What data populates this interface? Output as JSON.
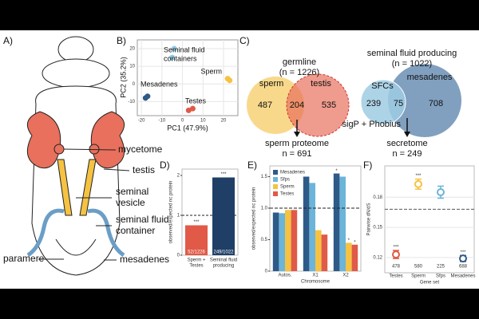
{
  "panel_a": {
    "label": "A)",
    "annotations": [
      "mycetome",
      "testis",
      "seminal",
      "vesicle",
      "seminal fluid",
      "container",
      "paramere",
      "mesadenes"
    ]
  },
  "panel_b": {
    "label": "B)",
    "type": "scatter",
    "xlabel": "PC1 (47.9%)",
    "ylabel": "PC2 (35.2%)",
    "xlim": [
      -22,
      27
    ],
    "ylim": [
      -18,
      25
    ],
    "xticks": [
      -20,
      -10,
      0,
      10,
      20
    ],
    "yticks": [
      -10,
      0,
      10,
      20
    ],
    "grid": true,
    "groups": [
      {
        "name": [
          "Seminal fluid",
          "containers"
        ],
        "color": "#8ecae6",
        "x": [
          -5,
          -4
        ],
        "y": [
          15,
          20
        ]
      },
      {
        "name": [
          "Sperm"
        ],
        "color": "#f5c242",
        "x": [
          23,
          22
        ],
        "y": [
          2,
          3
        ]
      },
      {
        "name": [
          "Mesadenes"
        ],
        "color": "#2e5a87",
        "x": [
          -18,
          -17
        ],
        "y": [
          -8,
          -7
        ]
      },
      {
        "name": [
          "Testes"
        ],
        "color": "#e05a47",
        "x": [
          3,
          5
        ],
        "y": [
          -15,
          -14
        ]
      }
    ]
  },
  "panel_c": {
    "label": "C)",
    "left": {
      "title": "germline",
      "n": "(n = 1226)",
      "set_a": "sperm",
      "set_b": "testis",
      "only_a": 487,
      "both": 204,
      "only_b": 535,
      "result": "sperm proteome",
      "result_n": "n = 691"
    },
    "right": {
      "title": "seminal fluid producing",
      "n": "(n = 1022)",
      "set_a": "SFCs",
      "set_b": "mesadenes",
      "only_a": 239,
      "both": 75,
      "only_b": 708,
      "filter": "sigP + Phobius",
      "result": "secretome",
      "result_n": "n = 249"
    }
  },
  "panel_d": {
    "label": "D)",
    "type": "bar",
    "ylabel": "observed/expected nc protein",
    "categories": [
      [
        "Sperm +",
        "Testes"
      ],
      [
        "Seminal fluid",
        "producing"
      ]
    ],
    "values": [
      0.75,
      1.95
    ],
    "colors": [
      "#e05a47",
      "#1f3f66"
    ],
    "counts": [
      "52/1226",
      "249/1022"
    ],
    "stars": [
      "***",
      "***"
    ],
    "ylim": [
      0,
      2.1
    ],
    "yticks": [
      0,
      1,
      2
    ],
    "reference_line": 1
  },
  "panel_e": {
    "label": "E)",
    "type": "bar",
    "xlabel": "Chromosome",
    "ylabel": "observed/expected nc protein",
    "categories": [
      "Autos.",
      "X1",
      "X2"
    ],
    "ylim": [
      0,
      1.62
    ],
    "yticks": [
      0,
      0.5,
      {
        "value": 1,
        "label": "1.0"
      },
      1.5
    ],
    "reference_line": 1,
    "series": [
      {
        "name": "Mesadenes",
        "color": "#2e5a87",
        "values": [
          0.93,
          1.5,
          1.55
        ],
        "stars": [
          null,
          null,
          "*"
        ]
      },
      {
        "name": "Sfps",
        "color": "#6cb4d9",
        "values": [
          0.92,
          1.4,
          1.5
        ],
        "stars": [
          null,
          null,
          null
        ]
      },
      {
        "name": "Sperm",
        "color": "#f5c242",
        "values": [
          0.97,
          0.65,
          0.45
        ],
        "stars": [
          null,
          null,
          "*"
        ]
      },
      {
        "name": "Testes",
        "color": "#e05a47",
        "values": [
          0.97,
          0.58,
          0.42
        ],
        "stars": [
          null,
          null,
          "*"
        ]
      }
    ]
  },
  "panel_f": {
    "label": "F)",
    "type": "errorbar",
    "xlabel": "Gene set",
    "ylabel": "Pairwise dN/dS",
    "categories": [
      "Testes",
      "Sperm",
      "Sfps",
      "Mesadenes"
    ],
    "colors": [
      "#e05a47",
      "#f5c242",
      "#6cb4d9",
      "#2e5a87"
    ],
    "values": [
      0.123,
      0.193,
      0.185,
      0.119
    ],
    "errors": [
      0.004,
      0.005,
      0.006,
      0.003
    ],
    "stars": [
      "***",
      "***",
      null,
      "***"
    ],
    "n": [
      478,
      580,
      225,
      688
    ],
    "ylim": [
      0.108,
      0.208
    ],
    "yticks": [
      0.12,
      0.15,
      0.18
    ],
    "reference_line": 0.168
  }
}
